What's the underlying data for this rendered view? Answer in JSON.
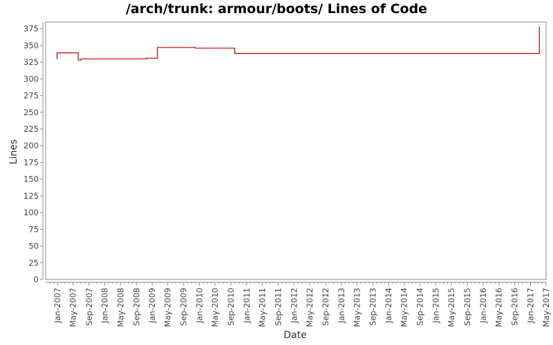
{
  "chart_data": {
    "type": "line",
    "title": "/arch/trunk: armour/boots/ Lines of Code",
    "xlabel": "Date",
    "ylabel": "Lines",
    "ylim": [
      0,
      385
    ],
    "yticks": [
      0,
      25,
      50,
      75,
      100,
      125,
      150,
      175,
      200,
      225,
      250,
      275,
      300,
      325,
      350,
      375
    ],
    "xlim": [
      "2006-10-01",
      "2017-05-01"
    ],
    "xticks": [
      "Jan-2007",
      "May-2007",
      "Sep-2007",
      "Jan-2008",
      "May-2008",
      "Sep-2008",
      "Jan-2009",
      "May-2009",
      "Sep-2009",
      "Jan-2010",
      "May-2010",
      "Sep-2010",
      "Jan-2011",
      "May-2011",
      "Sep-2011",
      "Jan-2012",
      "May-2012",
      "Sep-2012",
      "Jan-2013",
      "May-2013",
      "Sep-2013",
      "Jan-2014",
      "May-2014",
      "Sep-2014",
      "Jan-2015",
      "May-2015",
      "Sep-2015",
      "Jan-2016",
      "May-2016",
      "Sep-2016",
      "Jan-2017",
      "May-2017"
    ],
    "grid": false,
    "line_color": "#c00000",
    "series": [
      {
        "step": true,
        "x": [
          "2006-12-25",
          "2006-12-28",
          "2007-06-10",
          "2007-07-01",
          "2008-11-20",
          "2009-02-10",
          "2009-12-01",
          "2010-10-01",
          "2017-03-10"
        ],
        "values": [
          330,
          339,
          328,
          330,
          331,
          347,
          346,
          338,
          378
        ]
      }
    ]
  }
}
